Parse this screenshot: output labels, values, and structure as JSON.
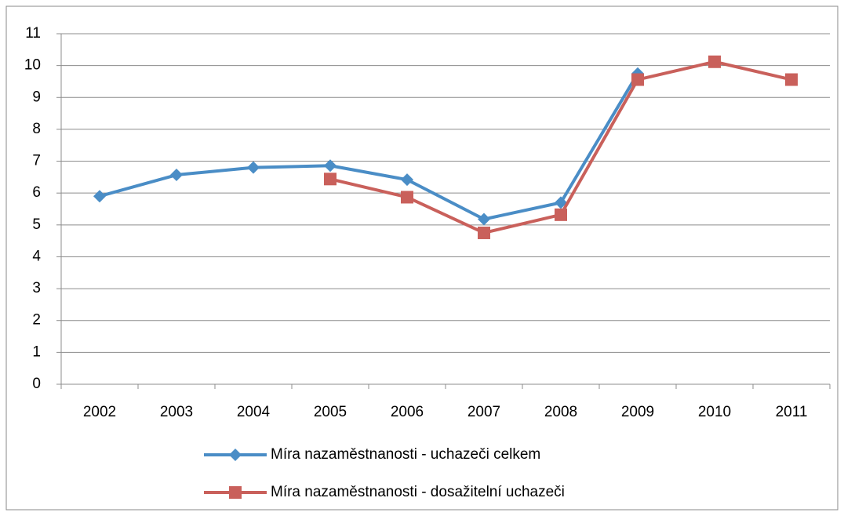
{
  "chart_data": {
    "type": "line",
    "categories": [
      "2002",
      "2003",
      "2004",
      "2005",
      "2006",
      "2007",
      "2008",
      "2009",
      "2010",
      "2011"
    ],
    "series": [
      {
        "name": "Míra nazaměstnanosti - uchazeči celkem",
        "color": "#4a8dc6",
        "marker": "diamond",
        "values": [
          5.9,
          6.57,
          6.8,
          6.86,
          6.42,
          5.18,
          5.7,
          9.75,
          null,
          null
        ]
      },
      {
        "name": "Míra nazaměstnanosti - dosažitelní uchazeči",
        "color": "#c9605b",
        "marker": "square",
        "values": [
          null,
          null,
          null,
          6.44,
          5.87,
          4.75,
          5.32,
          9.56,
          10.12,
          9.56
        ]
      }
    ],
    "ylim": [
      0,
      11
    ],
    "yticks": [
      0,
      1,
      2,
      3,
      4,
      5,
      6,
      7,
      8,
      9,
      10,
      11
    ],
    "grid": true,
    "legend": "bottom"
  }
}
